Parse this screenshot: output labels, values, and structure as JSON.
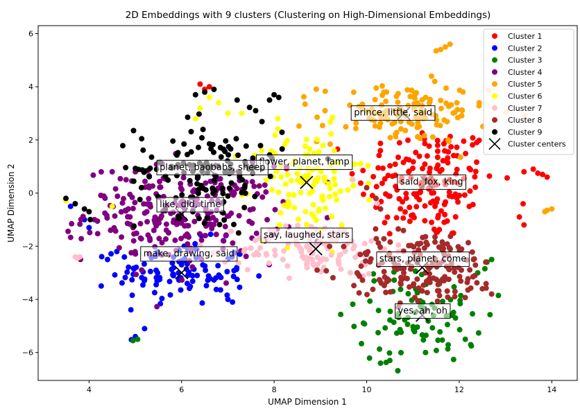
{
  "chart_data": {
    "type": "scatter",
    "title": "2D Embeddings with 9 clusters (Clustering on High-Dimensional Embeddings)",
    "xlabel": "UMAP Dimension 1",
    "ylabel": "UMAP Dimension 2",
    "xlim": [
      2.9,
      14.55
    ],
    "ylim": [
      -7.05,
      6.3
    ],
    "xticks": [
      4,
      6,
      8,
      10,
      12,
      14
    ],
    "yticks": [
      -6,
      -4,
      -2,
      0,
      2,
      4,
      6
    ],
    "grid": false,
    "legend_position": "top-right",
    "centers_label": "Cluster centers",
    "series": [
      {
        "name": "Cluster 1",
        "color": "#ff0000",
        "centroid": [
          11.3,
          0.4
        ],
        "spread": [
          0.75,
          1.1
        ],
        "count": 170,
        "extra": [
          [
            13.4,
            0.8
          ],
          [
            13.6,
            0.9
          ],
          [
            13.8,
            0.7
          ],
          [
            13.9,
            0.6
          ],
          [
            13.7,
            0.75
          ],
          [
            13.3,
            -0.9
          ],
          [
            13.4,
            -1.2
          ],
          [
            6.4,
            4.1
          ],
          [
            6.6,
            4.0
          ],
          [
            6.5,
            3.9
          ]
        ]
      },
      {
        "name": "Cluster 2",
        "color": "#0000ff",
        "centroid": [
          6.0,
          -3.0
        ],
        "spread": [
          0.7,
          0.6
        ],
        "count": 110,
        "extra": [
          [
            3.6,
            -0.5
          ],
          [
            3.9,
            -1.0
          ],
          [
            4.0,
            -1.3
          ],
          [
            4.4,
            -2.5
          ],
          [
            4.6,
            -2.2
          ],
          [
            5.0,
            -5.4
          ],
          [
            5.2,
            -5.1
          ],
          [
            7.0,
            -4.0
          ],
          [
            7.1,
            -4.1
          ]
        ]
      },
      {
        "name": "Cluster 3",
        "color": "#008000",
        "centroid": [
          11.2,
          -4.6
        ],
        "spread": [
          0.7,
          0.9
        ],
        "count": 90,
        "extra": [
          [
            4.95,
            -5.55
          ],
          [
            5.05,
            -5.5
          ],
          [
            10.3,
            -6.4
          ],
          [
            10.5,
            -6.3
          ],
          [
            12.4,
            -3.0
          ],
          [
            12.6,
            -2.6
          ],
          [
            12.7,
            -2.5
          ]
        ]
      },
      {
        "name": "Cluster 4",
        "color": "#800080",
        "centroid": [
          6.0,
          -0.8
        ],
        "spread": [
          1.05,
          0.9
        ],
        "count": 260,
        "extra": [
          [
            4.5,
            0.8
          ],
          [
            4.8,
            0.5
          ],
          [
            5.0,
            0.8
          ],
          [
            7.8,
            0.3
          ],
          [
            8.0,
            1.0
          ]
        ]
      },
      {
        "name": "Cluster 5",
        "color": "#ffa500",
        "centroid": [
          10.8,
          3.0
        ],
        "spread": [
          0.9,
          0.55
        ],
        "count": 130,
        "extra": [
          [
            11.6,
            5.4
          ],
          [
            11.7,
            5.5
          ],
          [
            11.8,
            5.6
          ],
          [
            11.5,
            5.35
          ],
          [
            11.4,
            4.4
          ],
          [
            13.9,
            -0.65
          ],
          [
            14.0,
            -0.6
          ],
          [
            13.85,
            -0.7
          ]
        ]
      },
      {
        "name": "Cluster 6",
        "color": "#ffff00",
        "centroid": [
          8.7,
          0.4
        ],
        "spread": [
          0.6,
          1.0
        ],
        "count": 110,
        "extra": [
          [
            6.6,
            3.6
          ],
          [
            6.8,
            3.4
          ],
          [
            6.4,
            3.2
          ],
          [
            6.3,
            2.8
          ],
          [
            7.0,
            3.0
          ],
          [
            7.3,
            3.0
          ],
          [
            4.5,
            -0.5
          ],
          [
            3.5,
            -0.3
          ]
        ]
      },
      {
        "name": "Cluster 7",
        "color": "#ffc0cb",
        "centroid": [
          8.9,
          -2.1
        ],
        "spread": [
          0.8,
          0.5
        ],
        "count": 120,
        "extra": [
          [
            3.7,
            -2.4
          ],
          [
            3.75,
            -2.45
          ],
          [
            3.8,
            -2.4
          ],
          [
            9.7,
            0.5
          ],
          [
            10.1,
            -1.8
          ]
        ]
      },
      {
        "name": "Cluster 8",
        "color": "#a52a2a",
        "centroid": [
          11.2,
          -2.8
        ],
        "spread": [
          0.85,
          0.7
        ],
        "count": 170,
        "extra": [
          [
            10.0,
            0.2
          ],
          [
            10.2,
            -0.2
          ],
          [
            10.3,
            -0.6
          ],
          [
            12.7,
            -3.8
          ],
          [
            12.5,
            -3.6
          ]
        ]
      },
      {
        "name": "Cluster 9",
        "color": "#000000",
        "centroid": [
          6.6,
          0.9
        ],
        "spread": [
          0.8,
          0.9
        ],
        "count": 140,
        "extra": [
          [
            3.5,
            -0.2
          ],
          [
            3.7,
            -0.4
          ],
          [
            3.9,
            -0.6
          ],
          [
            4.0,
            -0.7
          ],
          [
            6.5,
            3.8
          ],
          [
            6.3,
            3.7
          ],
          [
            6.7,
            3.9
          ],
          [
            8.0,
            3.7
          ],
          [
            8.1,
            3.6
          ],
          [
            7.9,
            3.5
          ],
          [
            7.6,
            3.1
          ],
          [
            7.2,
            3.5
          ]
        ]
      }
    ],
    "annotations": [
      {
        "text": "prince, little, said",
        "x": 9.65,
        "y": 3.05
      },
      {
        "text": "flower, planet, lamp",
        "x": 7.6,
        "y": 1.2
      },
      {
        "text": "planet, baobabs, sheep",
        "x": 5.45,
        "y": 1.0
      },
      {
        "text": "said, fox, king",
        "x": 10.65,
        "y": 0.45
      },
      {
        "text": "like, did, time",
        "x": 5.45,
        "y": -0.4
      },
      {
        "text": "say, laughed, stars",
        "x": 7.7,
        "y": -1.55
      },
      {
        "text": "make, drawing, said",
        "x": 5.1,
        "y": -2.25
      },
      {
        "text": "stars, planet, come",
        "x": 10.2,
        "y": -2.45
      },
      {
        "text": "yes, ah, oh",
        "x": 10.6,
        "y": -4.4
      }
    ]
  }
}
